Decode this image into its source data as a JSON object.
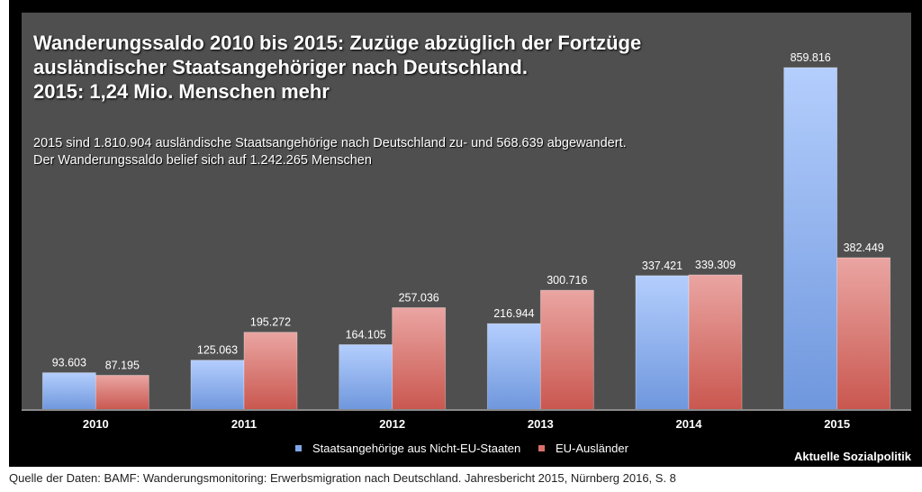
{
  "chart_data": {
    "type": "bar",
    "title": "Wanderungssaldo 2010 bis 2015: Zuzüge abzüglich der Fortzüge ausländischer Staatsangehöriger nach Deutschland. 2015: 1,24 Mio. Menschen mehr",
    "title_lines": [
      "Wanderungssaldo 2010 bis 2015: Zuzüge abzüglich der Fortzüge",
      "ausländischer Staatsangehöriger nach Deutschland.",
      "2015: 1,24 Mio. Menschen mehr"
    ],
    "subtitle_lines": [
      "2015 sind 1.810.904 ausländische Staatsangehörige nach Deutschland zu- und 568.639 abgewandert.",
      "Der Wanderungssaldo belief sich auf 1.242.265 Menschen"
    ],
    "categories": [
      "2010",
      "2011",
      "2012",
      "2013",
      "2014",
      "2015"
    ],
    "series": [
      {
        "name": "Staatsangehörige aus Nicht-EU-Staaten",
        "color": "#7fa6e8",
        "values": [
          93603,
          125063,
          164105,
          216944,
          337421,
          859816
        ],
        "labels": [
          "93.603",
          "125.063",
          "164.105",
          "216.944",
          "337.421",
          "859.816"
        ]
      },
      {
        "name": "EU-Ausländer",
        "color": "#d9706b",
        "values": [
          87195,
          195272,
          257036,
          300716,
          339309,
          382449
        ],
        "labels": [
          "87.195",
          "195.272",
          "257.036",
          "300.716",
          "339.309",
          "382.449"
        ]
      }
    ],
    "xlabel": "",
    "ylabel": "",
    "ylim": [
      0,
      860000
    ],
    "grid": false,
    "legend_position": "bottom-center",
    "credit": "Aktuelle Sozialpolitik",
    "source": "Quelle der Daten: BAMF: Wanderungsmonitoring: Erwerbsmigration nach Deutschland. Jahresbericht 2015, Nürnberg 2016, S. 8"
  }
}
